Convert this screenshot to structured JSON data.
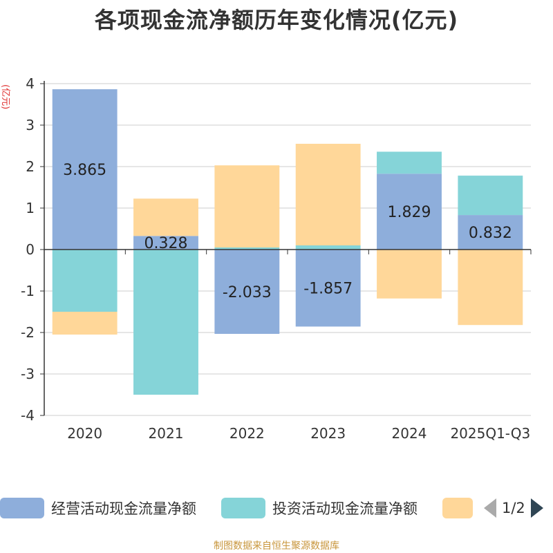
{
  "title": "各项现金流净额历年变化情况(亿元)",
  "source": "制图数据来自恒生聚源数据库",
  "legend_pager": "1/2",
  "colors": {
    "operating": "#8eaedb",
    "investing": "#85d4d8",
    "financing": "#ffd799"
  },
  "chart_data": {
    "type": "bar",
    "stacked": true,
    "ylabel": "(亿元)",
    "ylim": [
      -4,
      4
    ],
    "yticks": [
      4,
      3,
      2,
      1,
      0,
      -1,
      -2,
      -3,
      -4
    ],
    "grid": true,
    "legend_position": "bottom",
    "categories": [
      "2020",
      "2021",
      "2022",
      "2023",
      "2024",
      "2025Q1-Q3"
    ],
    "series": [
      {
        "key": "operating",
        "name": "经营活动现金流量净额",
        "values": [
          3.865,
          0.328,
          -2.033,
          -1.857,
          1.829,
          0.832
        ],
        "data_labels": [
          "3.865",
          "0.328",
          "-2.033",
          "-1.857",
          "1.829",
          "0.832"
        ]
      },
      {
        "key": "investing",
        "name": "投资活动现金流量净额",
        "values": [
          -1.5,
          -3.5,
          0.05,
          0.1,
          0.53,
          0.95
        ]
      },
      {
        "key": "financing",
        "name": "",
        "values": [
          -0.55,
          0.9,
          1.98,
          2.45,
          -1.18,
          -1.82
        ]
      }
    ]
  }
}
